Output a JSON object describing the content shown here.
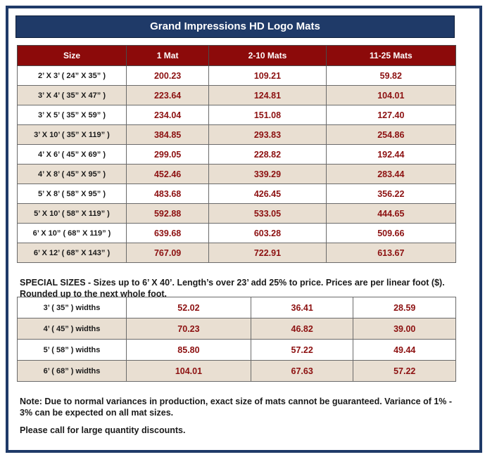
{
  "title": "Grand Impressions HD Logo Mats",
  "price_table": {
    "headers": [
      "Size",
      "1 Mat",
      "2-10 Mats",
      "11-25 Mats"
    ],
    "rows": [
      [
        "2’ X 3’ ( 24” X 35” )",
        "200.23",
        "109.21",
        "59.82"
      ],
      [
        "3’ X 4’ ( 35” X 47” )",
        "223.64",
        "124.81",
        "104.01"
      ],
      [
        "3’ X 5’ ( 35” X 59” )",
        "234.04",
        "151.08",
        "127.40"
      ],
      [
        "3’ X 10’ ( 35” X 119” )",
        "384.85",
        "293.83",
        "254.86"
      ],
      [
        "4’ X 6’ ( 45” X 69” )",
        "299.05",
        "228.82",
        "192.44"
      ],
      [
        "4’ X 8’ ( 45” X 95” )",
        "452.46",
        "339.29",
        "283.44"
      ],
      [
        "5’ X 8’ ( 58” X 95” )",
        "483.68",
        "426.45",
        "356.22"
      ],
      [
        "5’ X 10’ ( 58” X 119” )",
        "592.88",
        "533.05",
        "444.65"
      ],
      [
        "6’ X 10” ( 68” X 119” )",
        "639.68",
        "603.28",
        "509.66"
      ],
      [
        "6’ X 12’ ( 68” X 143” )",
        "767.09",
        "722.91",
        "613.67"
      ]
    ]
  },
  "special_sizes_note": "SPECIAL SIZES - Sizes up to 6’ X 40’. Length’s over 23’ add 25% to price. Prices are per linear foot ($). Rounded up to the next whole foot.",
  "special_table": {
    "rows": [
      [
        "3’ ( 35” ) widths",
        "52.02",
        "36.41",
        "28.59"
      ],
      [
        "4’ ( 45” ) widths",
        "70.23",
        "46.82",
        "39.00"
      ],
      [
        "5’ ( 58” ) widths",
        "85.80",
        "57.22",
        "49.44"
      ],
      [
        "6’ ( 68” ) widths",
        "104.01",
        "67.63",
        "57.22"
      ]
    ]
  },
  "variance_note": "Note: Due to normal variances in production, exact size of mats cannot be guaranteed. Variance of 1% - 3% can be expected on all mat sizes.",
  "discount_note": "Please call for large quantity discounts.",
  "colors": {
    "banner": "#1f3a68",
    "header_row": "#8c0a0a",
    "alt_row": "#e9dfd2",
    "price_text": "#8c1010"
  }
}
